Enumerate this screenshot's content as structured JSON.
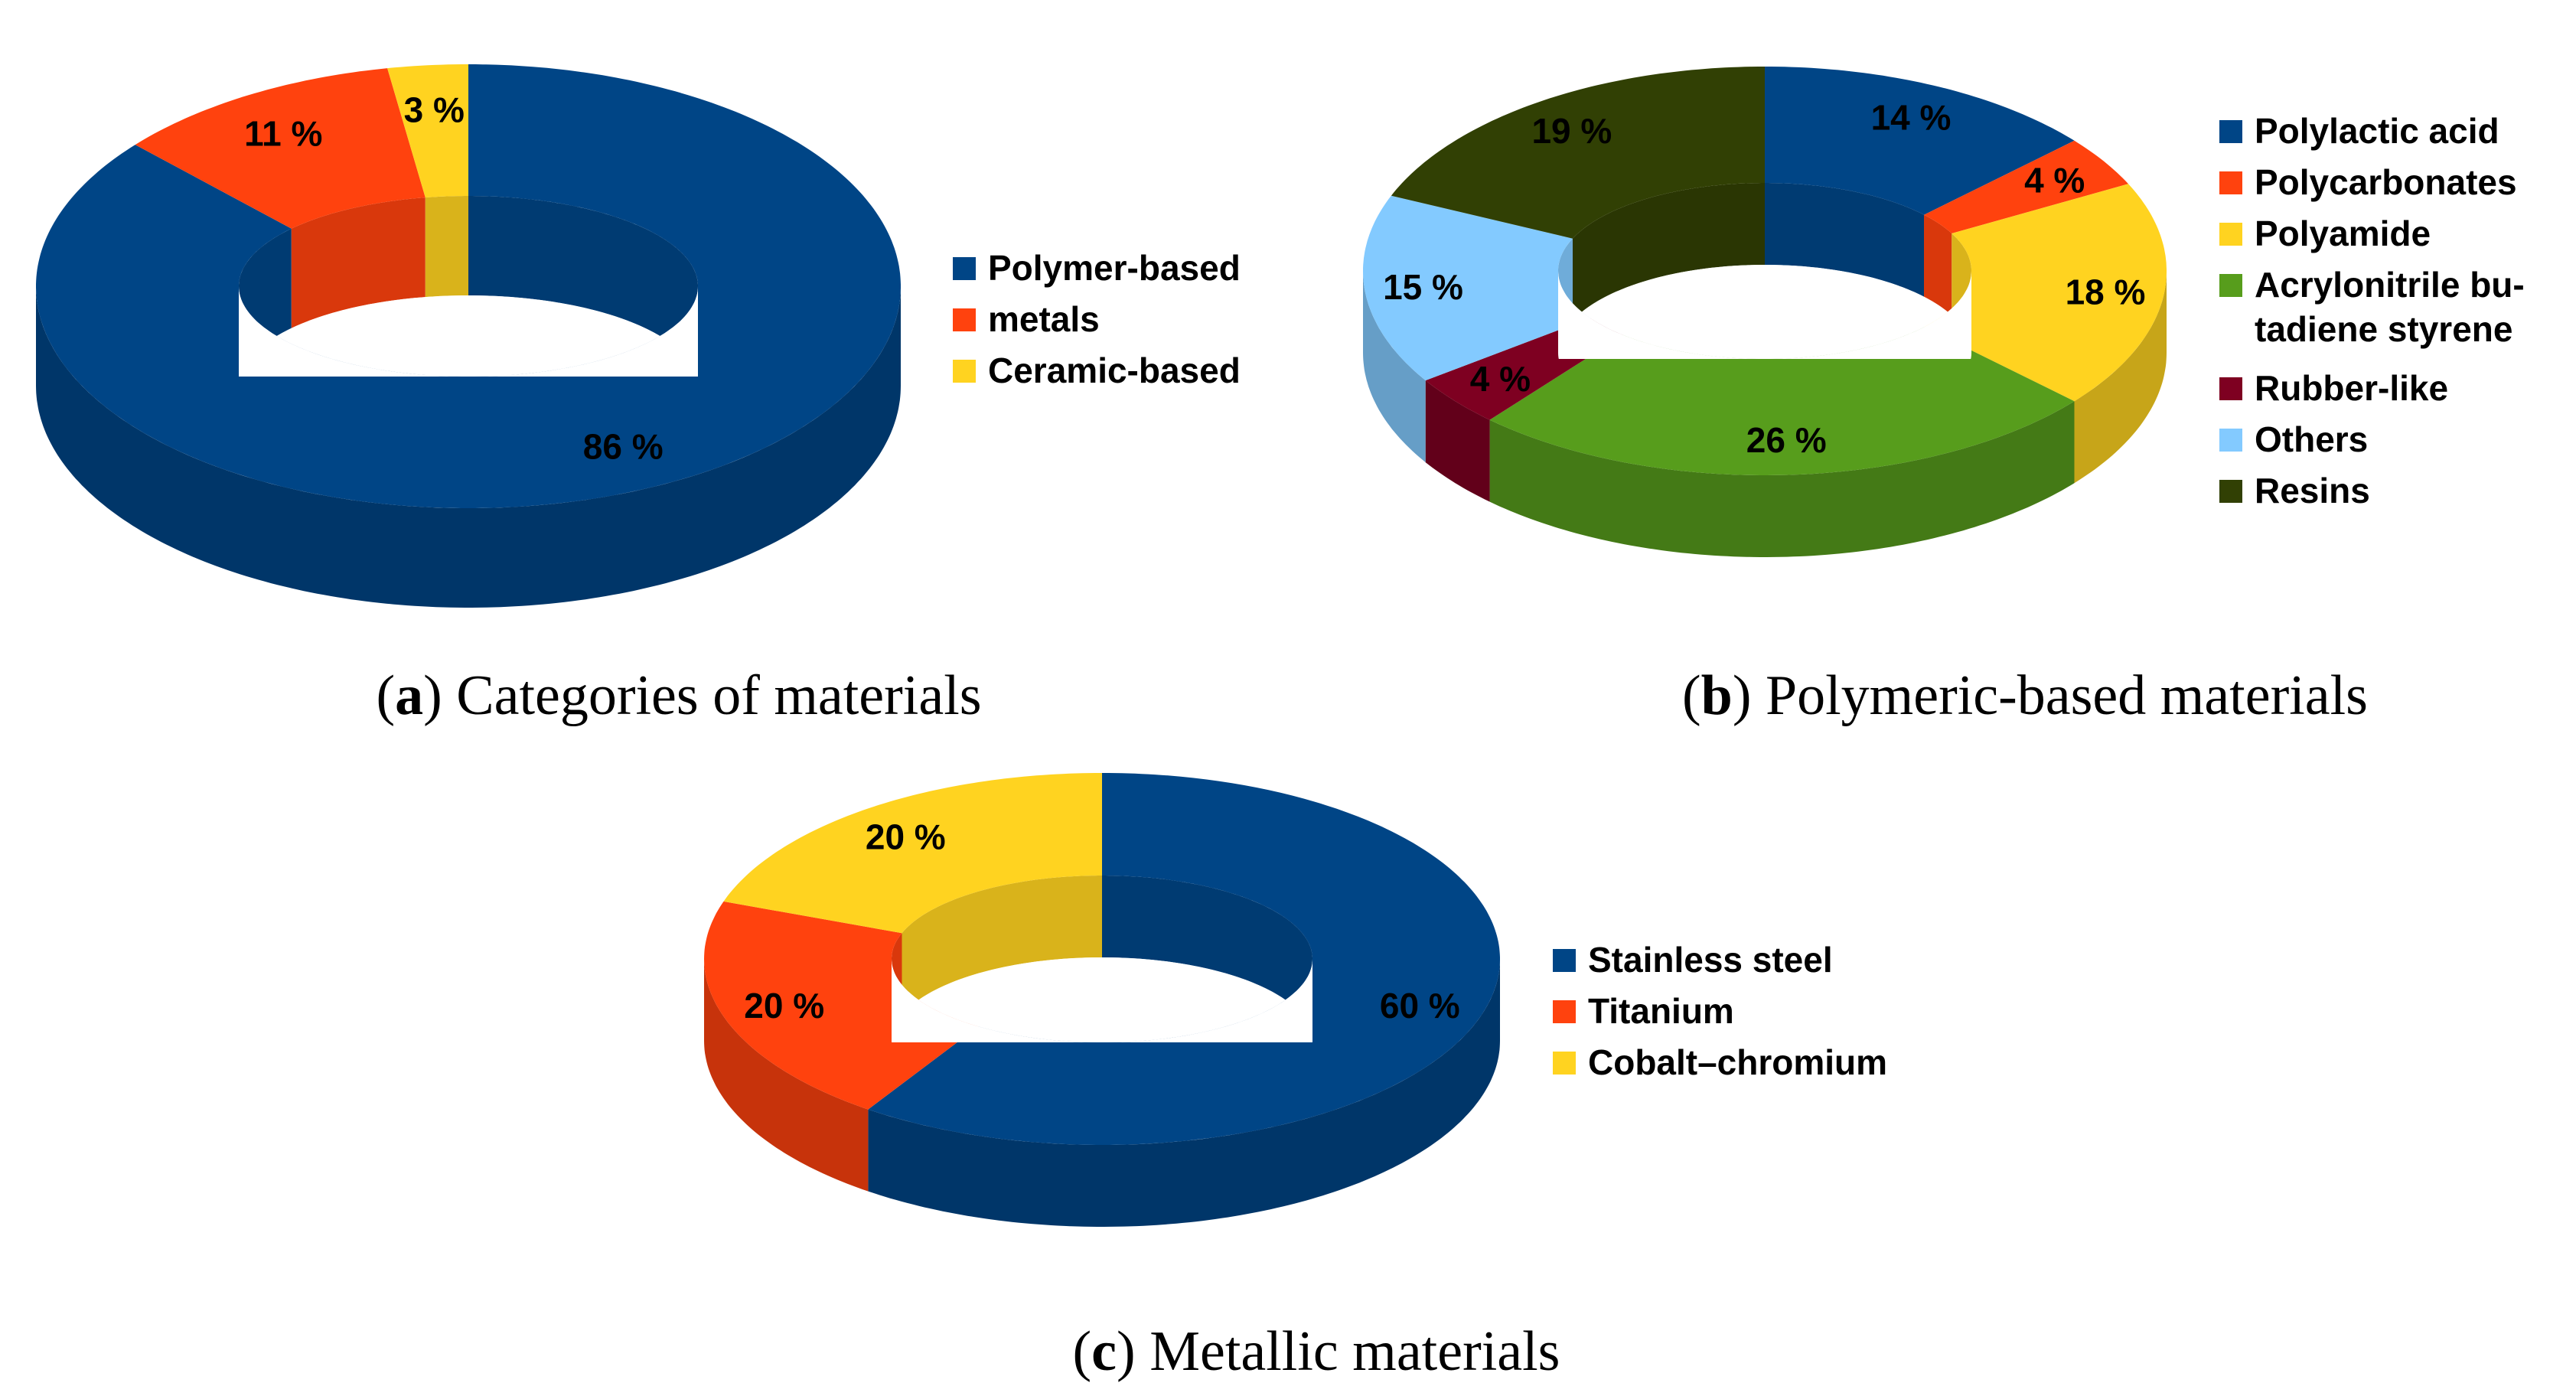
{
  "chart_data": [
    {
      "type": "pie",
      "style": "3d-donut",
      "caption": {
        "letter": "a",
        "text": "Categories of materials"
      },
      "legend_position": "right",
      "slices": [
        {
          "label": "Polymer-based",
          "value": 86,
          "value_label": "86 %",
          "color": "#004586"
        },
        {
          "label": "metals",
          "value": 11,
          "value_label": "11 %",
          "color": "#ff420e"
        },
        {
          "label": "Ceramic-based",
          "value": 3,
          "value_label": "3 %",
          "color": "#ffd320"
        }
      ]
    },
    {
      "type": "pie",
      "style": "3d-donut",
      "caption": {
        "letter": "b",
        "text": "Polymeric-based materials"
      },
      "legend_position": "right",
      "slices": [
        {
          "label": "Polylactic acid",
          "value": 14,
          "value_label": "14 %",
          "color": "#004586"
        },
        {
          "label": "Polycarbonates",
          "value": 4,
          "value_label": "4 %",
          "color": "#ff420e"
        },
        {
          "label": "Polyamide",
          "value": 18,
          "value_label": "18 %",
          "color": "#ffd320"
        },
        {
          "label": "Acrylonitrile bu-\ntadiene styrene",
          "value": 26,
          "value_label": "26 %",
          "color": "#579d1c"
        },
        {
          "label": "Rubber-like",
          "value": 4,
          "value_label": "4 %",
          "color": "#7e0021"
        },
        {
          "label": "Others",
          "value": 15,
          "value_label": "15 %",
          "color": "#83caff"
        },
        {
          "label": "Resins",
          "value": 19,
          "value_label": "19 %",
          "color": "#314004"
        }
      ]
    },
    {
      "type": "pie",
      "style": "3d-donut",
      "caption": {
        "letter": "c",
        "text": "Metallic materials"
      },
      "legend_position": "right",
      "slices": [
        {
          "label": "Stainless steel",
          "value": 60,
          "value_label": "60 %",
          "color": "#004586"
        },
        {
          "label": "Titanium",
          "value": 20,
          "value_label": "20 %",
          "color": "#ff420e"
        },
        {
          "label": "Cobalt–chromium",
          "value": 20,
          "value_label": "20 %",
          "color": "#ffd320"
        }
      ]
    }
  ]
}
